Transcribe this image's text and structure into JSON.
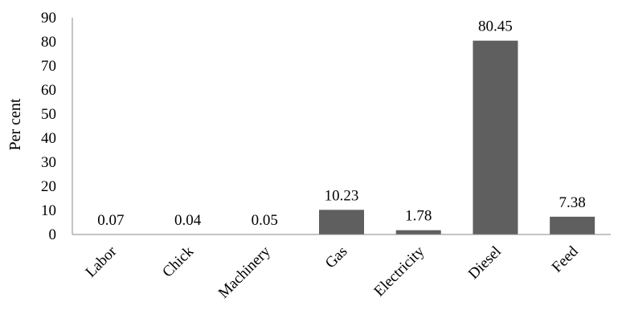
{
  "chart_data": {
    "type": "bar",
    "title": "",
    "xlabel": "",
    "ylabel": "Per cent",
    "categories": [
      "Labor",
      "Chick",
      "Machinery",
      "Gas",
      "Electricity",
      "Diesel",
      "Feed"
    ],
    "values": [
      0.07,
      0.04,
      0.05,
      10.23,
      1.78,
      80.45,
      7.38
    ],
    "value_labels": [
      "0.07",
      "0.04",
      "0.05",
      "10.23",
      "1.78",
      "80.45",
      "7.38"
    ],
    "ylim": [
      0,
      90
    ],
    "yticks": [
      0,
      10,
      20,
      30,
      40,
      50,
      60,
      70,
      80,
      90
    ],
    "bar_color": "#5f5f5f",
    "grid": false,
    "legend": "none"
  }
}
